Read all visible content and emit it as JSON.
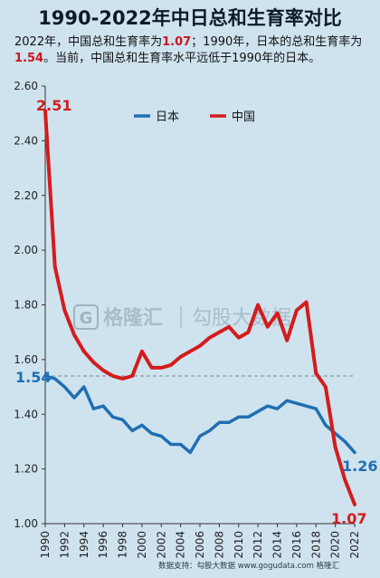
{
  "title": "1990-2022年中日总和生育率对比",
  "subtitle": {
    "p1": "2022年，中国总和生育率为",
    "v1": "1.07",
    "p2": "；1990年，日本的总和生育率为",
    "v2": "1.54",
    "p3": "。当前，中国总和生育率水平远低于1990年的日本。"
  },
  "footer": "数据支持：勾股大数据  www.gogudata.com  格隆汇",
  "watermark": {
    "brand_en": "G",
    "brand_cn": "格隆汇",
    "brand2": "勾股大数据"
  },
  "colors": {
    "japan": "#1f6fb2",
    "china": "#d41c1c",
    "background": "#cfe3ef"
  },
  "chart_data": {
    "type": "line",
    "title": "1990-2022年中日总和生育率对比",
    "xlabel": "",
    "ylabel": "",
    "ylim": [
      1.0,
      2.6
    ],
    "yticks": [
      "1.00",
      "1.20",
      "1.40",
      "1.60",
      "1.80",
      "2.00",
      "2.20",
      "2.40",
      "2.60"
    ],
    "x": [
      1990,
      1991,
      1992,
      1993,
      1994,
      1995,
      1996,
      1997,
      1998,
      1999,
      2000,
      2001,
      2002,
      2003,
      2004,
      2005,
      2006,
      2007,
      2008,
      2009,
      2010,
      2011,
      2012,
      2013,
      2014,
      2015,
      2016,
      2017,
      2018,
      2019,
      2020,
      2021,
      2022
    ],
    "xticks": [
      "1990",
      "1992",
      "1994",
      "1996",
      "1998",
      "2000",
      "2002",
      "2004",
      "2006",
      "2008",
      "2010",
      "2012",
      "2014",
      "2016",
      "2018",
      "2020",
      "2022"
    ],
    "legend": "top-center",
    "series": [
      {
        "name": "日本",
        "color": "#1f6fb2",
        "values": [
          1.54,
          1.53,
          1.5,
          1.46,
          1.5,
          1.42,
          1.43,
          1.39,
          1.38,
          1.34,
          1.36,
          1.33,
          1.32,
          1.29,
          1.29,
          1.26,
          1.32,
          1.34,
          1.37,
          1.37,
          1.39,
          1.39,
          1.41,
          1.43,
          1.42,
          1.45,
          1.44,
          1.43,
          1.42,
          1.36,
          1.33,
          1.3,
          1.26
        ]
      },
      {
        "name": "中国",
        "color": "#d41c1c",
        "values": [
          2.51,
          1.94,
          1.78,
          1.69,
          1.63,
          1.59,
          1.56,
          1.54,
          1.53,
          1.54,
          1.63,
          1.57,
          1.57,
          1.58,
          1.61,
          1.63,
          1.65,
          1.68,
          1.7,
          1.72,
          1.68,
          1.7,
          1.8,
          1.72,
          1.77,
          1.67,
          1.78,
          1.81,
          1.55,
          1.5,
          1.28,
          1.16,
          1.07
        ]
      }
    ],
    "annotations": [
      {
        "text": "2.51",
        "series": "中国",
        "x": 1990
      },
      {
        "text": "1.54",
        "series": "日本",
        "x": 1990
      },
      {
        "text": "1.26",
        "series": "日本",
        "x": 2022
      },
      {
        "text": "1.07",
        "series": "中国",
        "x": 2022
      }
    ],
    "reference_line": 1.54,
    "grid": false
  }
}
